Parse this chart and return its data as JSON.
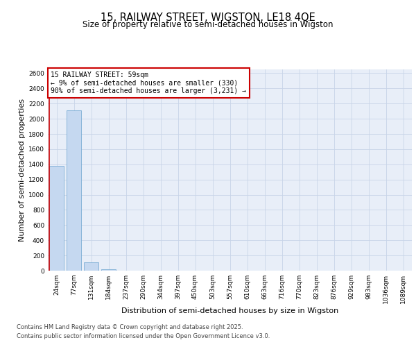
{
  "title_line1": "15, RAILWAY STREET, WIGSTON, LE18 4QE",
  "title_line2": "Size of property relative to semi-detached houses in Wigston",
  "xlabel": "Distribution of semi-detached houses by size in Wigston",
  "ylabel": "Number of semi-detached properties",
  "bin_labels": [
    "24sqm",
    "77sqm",
    "131sqm",
    "184sqm",
    "237sqm",
    "290sqm",
    "344sqm",
    "397sqm",
    "450sqm",
    "503sqm",
    "557sqm",
    "610sqm",
    "663sqm",
    "716sqm",
    "770sqm",
    "823sqm",
    "876sqm",
    "929sqm",
    "983sqm",
    "1036sqm",
    "1089sqm"
  ],
  "bin_values": [
    1380,
    2110,
    110,
    20,
    2,
    0,
    0,
    0,
    0,
    0,
    0,
    0,
    0,
    0,
    0,
    0,
    0,
    0,
    0,
    0,
    0
  ],
  "bar_color": "#c5d8f0",
  "bar_edge_color": "#7aadd4",
  "ylim": [
    0,
    2650
  ],
  "yticks": [
    0,
    200,
    400,
    600,
    800,
    1000,
    1200,
    1400,
    1600,
    1800,
    2000,
    2200,
    2400,
    2600
  ],
  "annotation_title": "15 RAILWAY STREET: 59sqm",
  "annotation_line1": "← 9% of semi-detached houses are smaller (330)",
  "annotation_line2": "90% of semi-detached houses are larger (3,231) →",
  "annotation_box_color": "#ffffff",
  "annotation_box_edge": "#cc0000",
  "red_line_color": "#cc0000",
  "grid_color": "#c8d4e8",
  "background_color": "#e8eef8",
  "footer_line1": "Contains HM Land Registry data © Crown copyright and database right 2025.",
  "footer_line2": "Contains public sector information licensed under the Open Government Licence v3.0.",
  "title_fontsize": 10.5,
  "subtitle_fontsize": 8.5,
  "axis_label_fontsize": 8,
  "tick_fontsize": 6.5,
  "annotation_fontsize": 7,
  "footer_fontsize": 6
}
